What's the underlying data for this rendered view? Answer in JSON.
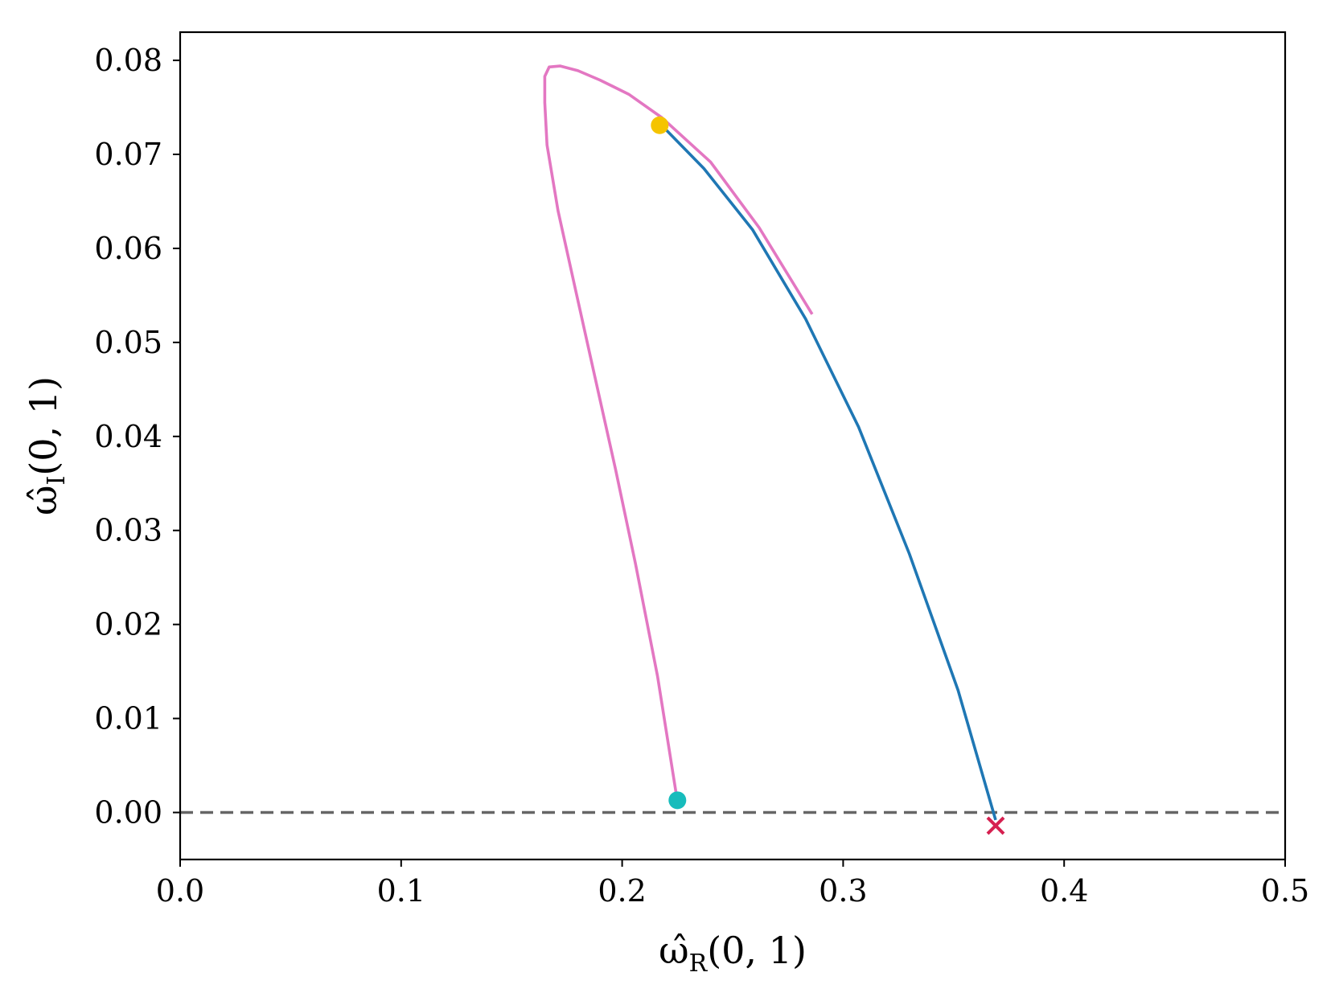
{
  "chart_data": {
    "type": "line",
    "xlabel": "ω̂R(0, 1)",
    "ylabel": "ω̂I(0, 1)",
    "xlim": [
      0.0,
      0.5
    ],
    "ylim": [
      -0.005,
      0.083
    ],
    "x_ticks": [
      "0.0",
      "0.1",
      "0.2",
      "0.3",
      "0.4",
      "0.5"
    ],
    "y_ticks": [
      "0.00",
      "0.01",
      "0.02",
      "0.03",
      "0.04",
      "0.05",
      "0.06",
      "0.07",
      "0.08"
    ],
    "grid": false,
    "colors": {
      "blue": "#1f77b4",
      "pink": "#e377c2",
      "gold": "#f5c400",
      "cyan": "#17bcbc",
      "red": "#d62050",
      "dashed": "#666666"
    },
    "series": [
      {
        "color_key": "blue",
        "x": [
          0.217,
          0.237,
          0.259,
          0.283,
          0.307,
          0.33,
          0.352,
          0.369
        ],
        "y": [
          0.0733,
          0.0685,
          0.062,
          0.0525,
          0.041,
          0.0275,
          0.013,
          -0.0008
        ]
      },
      {
        "color_key": "pink",
        "x": [
          0.225,
          0.216,
          0.206,
          0.197,
          0.188,
          0.179,
          0.171,
          0.166,
          0.165,
          0.165,
          0.167,
          0.172,
          0.18,
          0.19,
          0.203,
          0.218,
          0.24,
          0.262,
          0.286
        ],
        "y": [
          0.0012,
          0.0145,
          0.0265,
          0.0365,
          0.046,
          0.0555,
          0.064,
          0.071,
          0.0755,
          0.0783,
          0.0793,
          0.0794,
          0.0789,
          0.0779,
          0.0764,
          0.0739,
          0.0692,
          0.0622,
          0.053
        ]
      }
    ],
    "markers": [
      {
        "shape": "circle",
        "color_key": "gold",
        "x": 0.217,
        "y": 0.0731
      },
      {
        "shape": "circle",
        "color_key": "cyan",
        "x": 0.225,
        "y": 0.0013
      },
      {
        "shape": "x",
        "color_key": "red",
        "x": 0.369,
        "y": -0.0014
      }
    ],
    "reference_line": {
      "y": 0.0,
      "style": "dashed",
      "color_key": "dashed"
    }
  }
}
